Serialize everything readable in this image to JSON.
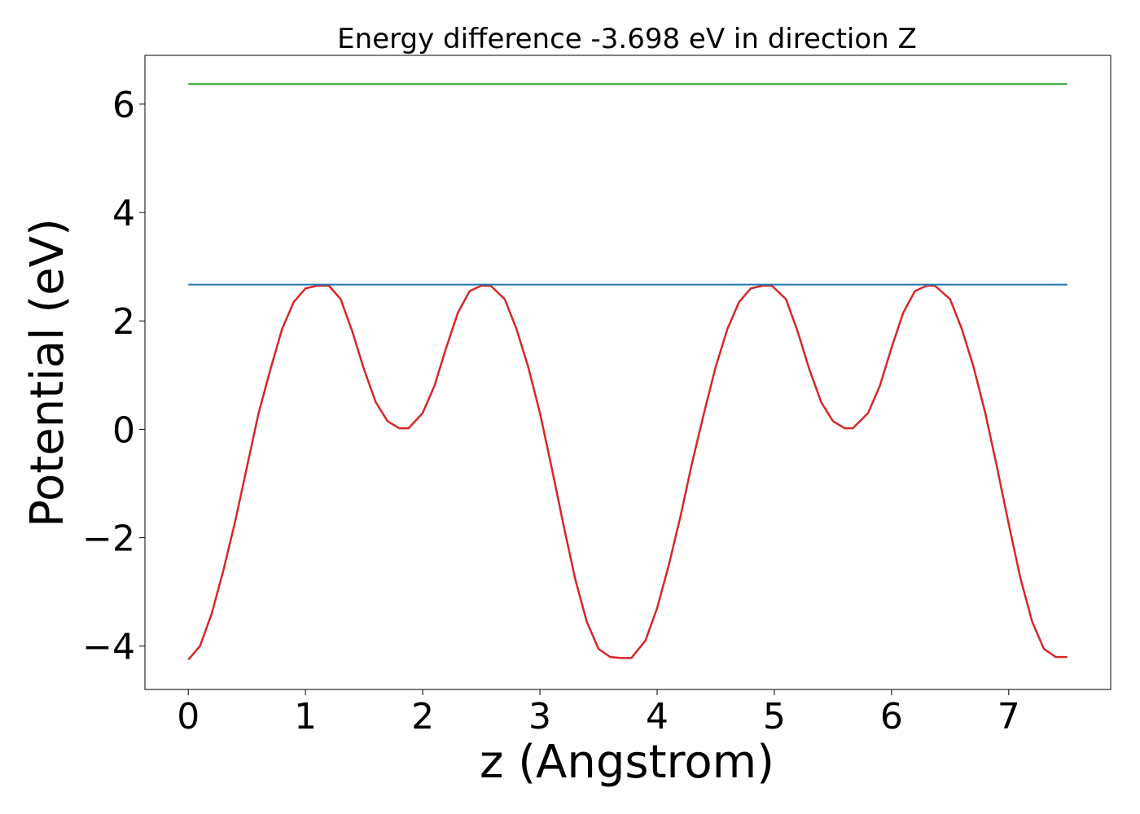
{
  "chart_data": {
    "type": "line",
    "title": "Energy difference -3.698 eV in direction Z",
    "xlabel": "z (Angstrom)",
    "ylabel": "Potential (eV)",
    "xlim": [
      -0.37,
      7.87
    ],
    "ylim": [
      -4.8,
      6.9
    ],
    "x_ticks": [
      0,
      1,
      2,
      3,
      4,
      5,
      6,
      7
    ],
    "y_ticks": [
      -4,
      -2,
      0,
      2,
      4,
      6
    ],
    "x_tick_labels": [
      "0",
      "1",
      "2",
      "3",
      "4",
      "5",
      "6",
      "7"
    ],
    "y_tick_labels": [
      "−4",
      "−2",
      "0",
      "2",
      "4",
      "6"
    ],
    "grid": false,
    "series": [
      {
        "color": "#d62728",
        "x": [
          0,
          0.1,
          0.2,
          0.3,
          0.4,
          0.5,
          0.6,
          0.7,
          0.8,
          0.9,
          1.0,
          1.1,
          1.2,
          1.3,
          1.4,
          1.5,
          1.6,
          1.7,
          1.8,
          1.88,
          2.0,
          2.1,
          2.2,
          2.3,
          2.4,
          2.5,
          2.58,
          2.7,
          2.8,
          2.9,
          3.0,
          3.1,
          3.2,
          3.3,
          3.4,
          3.5,
          3.6,
          3.7,
          3.78,
          3.9,
          4.0,
          4.1,
          4.2,
          4.3,
          4.4,
          4.5,
          4.6,
          4.7,
          4.8,
          4.9,
          4.98,
          5.1,
          5.2,
          5.3,
          5.4,
          5.5,
          5.6,
          5.67,
          5.8,
          5.9,
          6.0,
          6.1,
          6.2,
          6.3,
          6.37,
          6.5,
          6.6,
          6.7,
          6.8,
          6.9,
          7.0,
          7.1,
          7.2,
          7.3,
          7.4,
          7.5
        ],
        "y": [
          -4.25,
          -4.0,
          -3.4,
          -2.6,
          -1.7,
          -0.7,
          0.3,
          1.1,
          1.85,
          2.35,
          2.6,
          2.65,
          2.65,
          2.4,
          1.8,
          1.1,
          0.5,
          0.15,
          0.02,
          0.02,
          0.3,
          0.8,
          1.5,
          2.15,
          2.55,
          2.65,
          2.65,
          2.4,
          1.85,
          1.15,
          0.3,
          -0.7,
          -1.75,
          -2.75,
          -3.55,
          -4.05,
          -4.2,
          -4.22,
          -4.22,
          -3.9,
          -3.3,
          -2.5,
          -1.6,
          -0.6,
          0.3,
          1.15,
          1.85,
          2.35,
          2.6,
          2.65,
          2.65,
          2.4,
          1.8,
          1.1,
          0.5,
          0.15,
          0.02,
          0.02,
          0.3,
          0.8,
          1.5,
          2.15,
          2.55,
          2.65,
          2.65,
          2.4,
          1.85,
          1.15,
          0.3,
          -0.7,
          -1.75,
          -2.75,
          -3.55,
          -4.05,
          -4.2,
          -4.2
        ]
      },
      {
        "color": "#1f77b4",
        "x": [
          0,
          7.5
        ],
        "y": [
          2.67,
          2.67
        ]
      },
      {
        "color": "#2ca02c",
        "x": [
          0,
          7.5
        ],
        "y": [
          6.37,
          6.37
        ]
      }
    ]
  }
}
